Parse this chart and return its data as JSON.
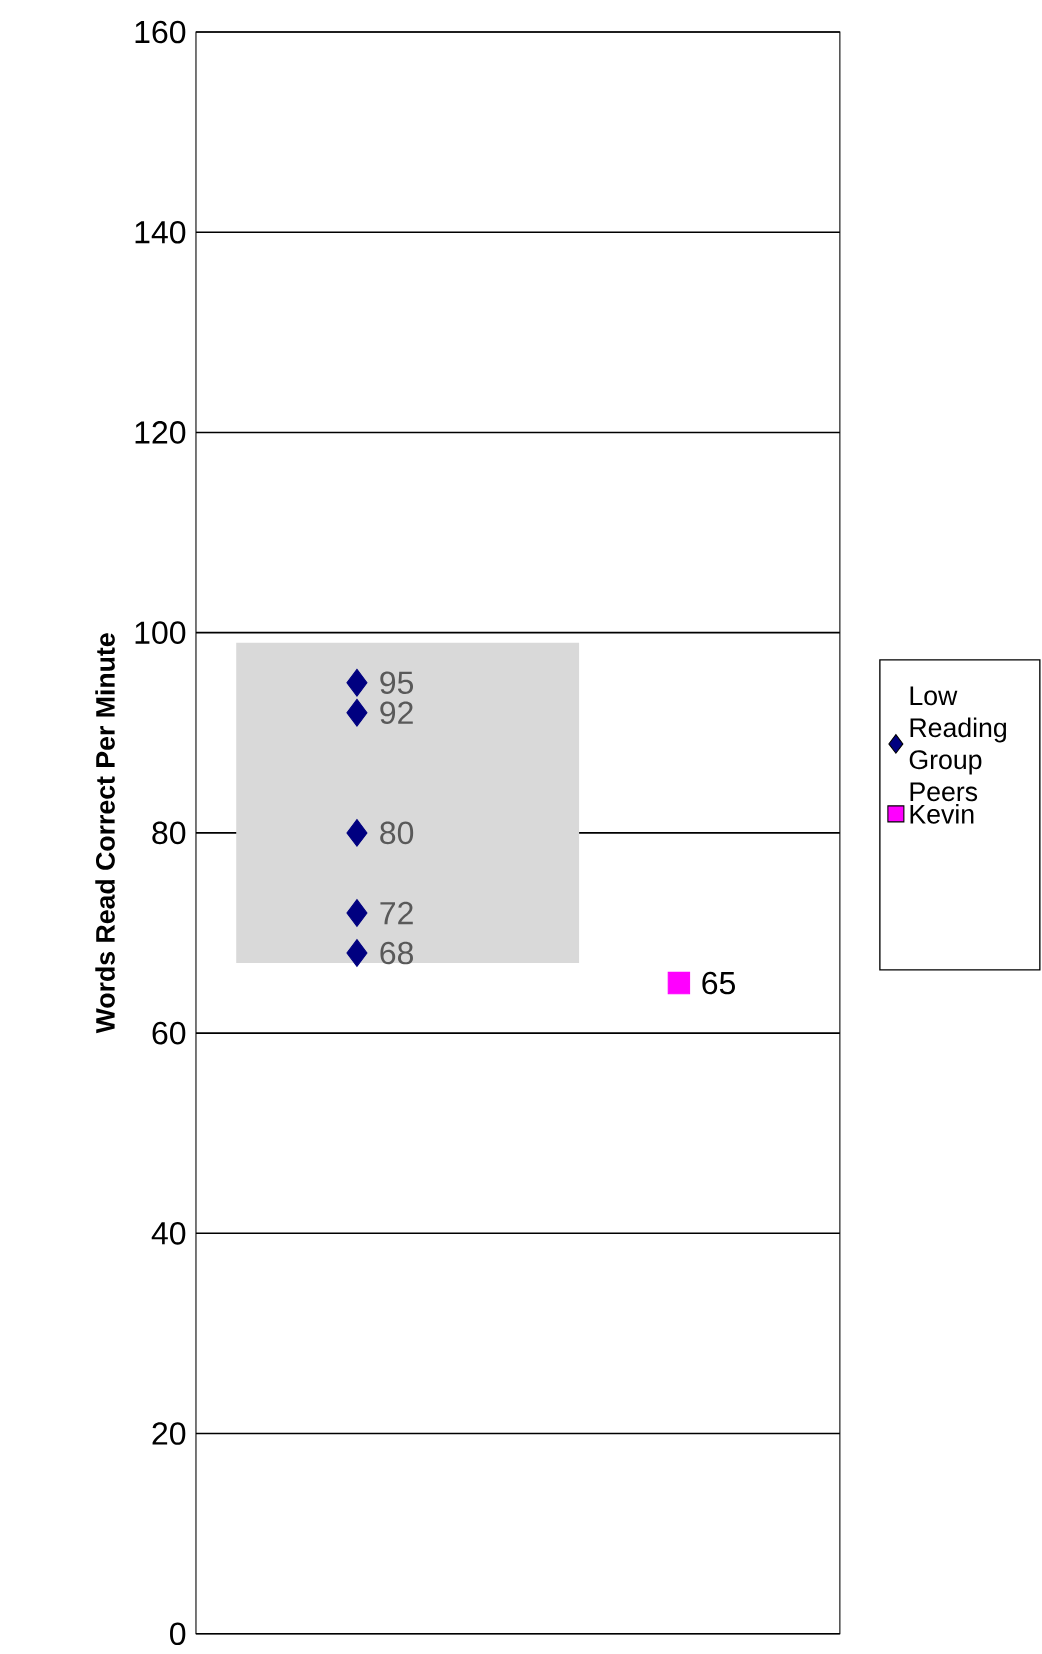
{
  "chart_data": {
    "type": "scatter",
    "ylabel": "Words Read Correct Per Minute",
    "categories": [
      null,
      null
    ],
    "ylim": [
      0,
      160
    ],
    "yticks": [
      0,
      20,
      40,
      60,
      80,
      100,
      120,
      140,
      160
    ],
    "tick_labels": "y",
    "grid": "y",
    "legend": "right",
    "data_labels": true,
    "bands": [
      {
        "axis": "y",
        "from": 67,
        "to": 99,
        "color": "#d9d9d9"
      }
    ],
    "series": [
      {
        "name": "Low Reading Group Peers",
        "color": "#000080",
        "marker": "diamond",
        "values": [
          95,
          null
        ]
      },
      {
        "color": "#000080",
        "marker": "diamond",
        "values": [
          92,
          null
        ]
      },
      {
        "color": "#000080",
        "marker": "diamond",
        "values": [
          80,
          null
        ]
      },
      {
        "color": "#000080",
        "marker": "diamond",
        "values": [
          72,
          null
        ]
      },
      {
        "color": "#000080",
        "marker": "diamond",
        "values": [
          68,
          null
        ]
      },
      {
        "name": "Kevin",
        "color": "#ff00ff",
        "marker": "square",
        "values": [
          null,
          65
        ]
      }
    ]
  }
}
